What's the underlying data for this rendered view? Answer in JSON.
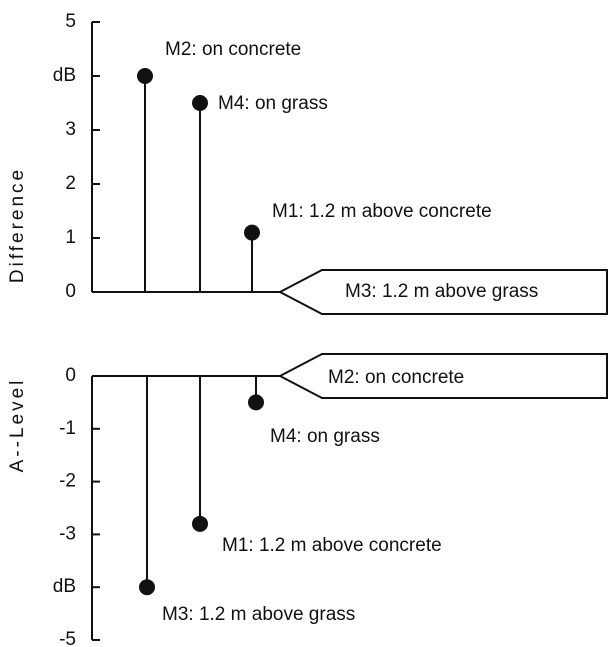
{
  "chart_data": [
    {
      "type": "stem",
      "ylabel": "Difference",
      "reference": "M3: 1.2 m above grass",
      "categories": [
        "M2: on concrete",
        "M4: on grass",
        "M1: 1.2 m above concrete"
      ],
      "values": [
        4.0,
        3.5,
        1.1
      ],
      "ylim": [
        0,
        5
      ],
      "yticks": [
        0,
        1,
        2,
        3,
        {
          "value": 4,
          "label": "dB"
        },
        5
      ]
    },
    {
      "type": "stem",
      "ylabel": "A--Level",
      "reference": "M2: on concrete",
      "categories": [
        "M3: 1.2 m above grass",
        "M1: 1.2 m above concrete",
        "M4: on grass"
      ],
      "values": [
        -4.0,
        -2.8,
        -0.5
      ],
      "ylim": [
        -5,
        0
      ],
      "yticks": [
        0,
        -1,
        -2,
        -3,
        {
          "value": -4,
          "label": "dB"
        },
        -5
      ]
    }
  ]
}
